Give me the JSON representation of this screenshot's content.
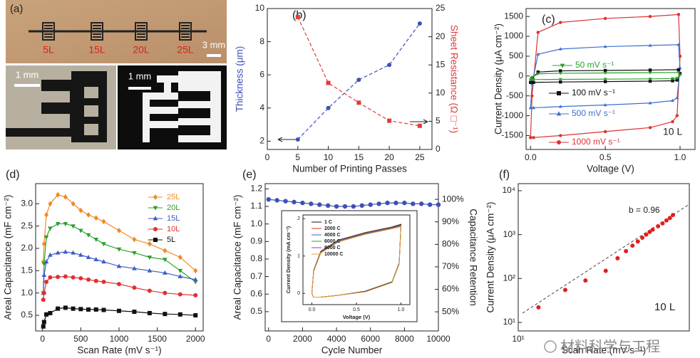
{
  "photos": {
    "label": "(a)",
    "samples": [
      "5L",
      "15L",
      "20L",
      "25L"
    ],
    "scale_top": "3 mm",
    "scale_left": "1 mm",
    "scale_right": "1 mm"
  },
  "watermark": "材料科学与工程",
  "chart_data": [
    {
      "label": "(b)",
      "type": "line",
      "x": [
        5,
        10,
        15,
        20,
        25
      ],
      "xlim": [
        0,
        27
      ],
      "xticks": [
        0,
        5,
        10,
        15,
        20,
        25
      ],
      "ylim": [
        1.5,
        10
      ],
      "yticks": [
        2,
        4,
        6,
        8,
        10
      ],
      "y2lim": [
        0,
        25
      ],
      "y2ticks": [
        0,
        5,
        10,
        15,
        20,
        25
      ],
      "xlabel": "Number of Printing Passes",
      "ylabel": "Thickness (μm)",
      "y2label": "Sheet Resistance (Ω □⁻¹)",
      "ylabel_color": "#3f4fb8",
      "y2label_color": "#e23b3b",
      "series": [
        {
          "color": "#3f4fb8",
          "marker": "circle",
          "dashed": true,
          "values": [
            2.1,
            4.0,
            5.7,
            6.6,
            9.1
          ]
        },
        {
          "color": "#e23b3b",
          "marker": "square",
          "dashed": true,
          "axis": "y2",
          "values": [
            23.5,
            11.8,
            8.3,
            5.1,
            4.2
          ]
        }
      ]
    },
    {
      "label": "(c)",
      "type": "line",
      "x": [
        0,
        0.01,
        0.05,
        0.2,
        0.5,
        0.8,
        0.99,
        1.0,
        0.98,
        0.95,
        0.8,
        0.5,
        0.2,
        0.02,
        0
      ],
      "xlim": [
        -0.03,
        1.1
      ],
      "xticks": [
        {
          "value": 0,
          "label": "0.0"
        },
        0.5,
        {
          "value": 1,
          "label": "1.0"
        }
      ],
      "ylim": [
        -1850,
        1700
      ],
      "yticks": [
        -1500,
        -1000,
        -500,
        0,
        500,
        1000,
        1500
      ],
      "xlabel": "Voltage (V)",
      "ylabel": "Current Density (μA cm⁻²)",
      "annotation": "10 L",
      "series": [
        {
          "name": "1000 mV s⁻¹",
          "color": "#e03030",
          "marker": "circle",
          "values": [
            -1550,
            -500,
            1100,
            1350,
            1450,
            1500,
            1550,
            500,
            -1000,
            -1150,
            -1300,
            -1400,
            -1500,
            -1550,
            -1550
          ]
        },
        {
          "name": "500 mV s⁻¹",
          "color": "#3d6fd1",
          "marker": "triangle",
          "values": [
            -800,
            -200,
            550,
            680,
            740,
            770,
            790,
            200,
            -550,
            -620,
            -680,
            -730,
            -770,
            -800,
            -800
          ]
        },
        {
          "name": "100 mV s⁻¹",
          "color": "#111111",
          "marker": "square",
          "values": [
            -160,
            -60,
            100,
            130,
            140,
            150,
            160,
            60,
            -100,
            -120,
            -130,
            -140,
            -150,
            -160,
            -160
          ]
        },
        {
          "name": "50 mV s⁻¹",
          "color": "#2ca02c",
          "marker": "triangle-down",
          "values": [
            -90,
            -30,
            55,
            70,
            78,
            84,
            90,
            30,
            -55,
            -65,
            -72,
            -78,
            -84,
            -90,
            -90
          ]
        }
      ]
    },
    {
      "label": "(d)",
      "type": "line",
      "x": [
        10,
        20,
        50,
        100,
        200,
        300,
        400,
        500,
        600,
        700,
        800,
        1000,
        1200,
        1400,
        1600,
        1800,
        2000
      ],
      "xlim": [
        -90,
        2100
      ],
      "xticks": [
        0,
        500,
        1000,
        1500,
        2000
      ],
      "ylim": [
        0.15,
        3.45
      ],
      "yticks": [
        0.5,
        {
          "value": 1,
          "label": "1.0"
        },
        1.5,
        {
          "value": 2,
          "label": "2.0"
        },
        2.5,
        {
          "value": 3,
          "label": "3.0"
        }
      ],
      "xlabel": "Scan Rate (mV s⁻¹)",
      "ylabel": "Areal Capacitance (mF cm⁻²)",
      "legend": "upper right",
      "series": [
        {
          "name": "25L",
          "color": "#f08a24",
          "marker": "diamond",
          "values": [
            1.7,
            2.1,
            2.75,
            3.0,
            3.2,
            3.15,
            3.0,
            2.85,
            2.75,
            2.68,
            2.6,
            2.4,
            2.2,
            2.1,
            1.95,
            1.8,
            1.5
          ]
        },
        {
          "name": "20L",
          "color": "#2ca02c",
          "marker": "triangle-down",
          "values": [
            1.0,
            1.65,
            2.25,
            2.45,
            2.55,
            2.55,
            2.5,
            2.4,
            2.3,
            2.2,
            2.1,
            1.98,
            1.9,
            1.8,
            1.75,
            1.5,
            1.25
          ]
        },
        {
          "name": "15L",
          "color": "#3d5cc7",
          "marker": "triangle",
          "values": [
            1.0,
            1.4,
            1.7,
            1.85,
            1.9,
            1.92,
            1.9,
            1.85,
            1.8,
            1.75,
            1.7,
            1.6,
            1.55,
            1.5,
            1.45,
            1.37,
            1.3
          ]
        },
        {
          "name": "10L",
          "color": "#e03030",
          "marker": "circle",
          "values": [
            0.85,
            1.0,
            1.25,
            1.35,
            1.36,
            1.37,
            1.35,
            1.33,
            1.3,
            1.27,
            1.25,
            1.2,
            1.12,
            1.05,
            1.0,
            0.97,
            0.95
          ]
        },
        {
          "name": "5L",
          "color": "#111111",
          "marker": "square",
          "values": [
            0.25,
            0.35,
            0.52,
            0.55,
            0.65,
            0.67,
            0.65,
            0.64,
            0.63,
            0.63,
            0.62,
            0.6,
            0.58,
            0.55,
            0.53,
            0.52,
            0.5
          ]
        }
      ]
    },
    {
      "label": "(e)",
      "type": "line",
      "x": [
        0,
        500,
        1000,
        1500,
        2000,
        2500,
        3000,
        3500,
        4000,
        4500,
        5000,
        5500,
        6000,
        6500,
        7000,
        7500,
        8000,
        8500,
        9000,
        9500,
        10000
      ],
      "xlim": [
        -200,
        10000
      ],
      "xticks": [
        0,
        2000,
        4000,
        6000,
        8000,
        10000
      ],
      "ylim": [
        0.39,
        1.23
      ],
      "yticks": [
        0.5,
        0.6,
        0.7,
        0.8,
        0.9,
        {
          "value": 1,
          "label": "1.0"
        },
        1.1,
        1.2
      ],
      "y2lim": [
        41.5,
        107
      ],
      "y2ticks": [
        {
          "value": 50,
          "label": "50%"
        },
        {
          "value": 60,
          "label": "60%"
        },
        {
          "value": 70,
          "label": "70%"
        },
        {
          "value": 80,
          "label": "80%"
        },
        {
          "value": 90,
          "label": "90%"
        },
        {
          "value": 100,
          "label": "100%"
        }
      ],
      "xlabel": "Cycle Number",
      "ylabel": "Areal Capacitance (mF cm⁻²)",
      "y2label": "Capacitance Retention",
      "series": [
        {
          "color": "#3f4fb8",
          "marker": "circle",
          "values": [
            1.14,
            1.135,
            1.13,
            1.125,
            1.12,
            1.115,
            1.11,
            1.105,
            1.1,
            1.1,
            1.1,
            1.105,
            1.11,
            1.115,
            1.12,
            1.12,
            1.12,
            1.115,
            1.115,
            1.11,
            1.11
          ]
        }
      ]
    },
    {
      "type": "line",
      "inset": true,
      "x": [
        0,
        0.02,
        0.1,
        0.3,
        0.6,
        0.9,
        1.0,
        0.98,
        0.9,
        0.6,
        0.3,
        0.1,
        0.02,
        0
      ],
      "xlim": [
        -0.1,
        1.1
      ],
      "xticks": [
        {
          "value": 0,
          "label": "0.0"
        },
        0.5,
        {
          "value": 1,
          "label": "1.0"
        }
      ],
      "ylim": [
        -0.3,
        2.1
      ],
      "yticks": [
        0,
        1,
        2
      ],
      "xlabel": "Voltage (V)",
      "ylabel": "Current Density (mA cm⁻²)",
      "legend": "upper left",
      "series": [
        {
          "name": "1 C",
          "color": "#111111",
          "values": [
            0.0,
            0.62,
            1.13,
            1.43,
            1.63,
            1.78,
            1.85,
            0.82,
            0.31,
            0.06,
            -0.05,
            -0.1,
            -0.1,
            0.0
          ]
        },
        {
          "name": "2000 C",
          "color": "#e03030",
          "values": [
            0.0,
            0.61,
            1.12,
            1.42,
            1.62,
            1.77,
            1.83,
            0.81,
            0.3,
            0.05,
            -0.05,
            -0.1,
            -0.1,
            0.0
          ]
        },
        {
          "name": "4000 C",
          "color": "#3d5cc7",
          "values": [
            0.0,
            0.6,
            1.11,
            1.41,
            1.61,
            1.76,
            1.82,
            0.8,
            0.3,
            0.05,
            -0.05,
            -0.1,
            -0.1,
            0.0
          ]
        },
        {
          "name": "6000 C",
          "color": "#2ca02c",
          "values": [
            0.0,
            0.6,
            1.1,
            1.4,
            1.6,
            1.75,
            1.81,
            0.8,
            0.3,
            0.05,
            -0.05,
            -0.1,
            -0.1,
            0.0
          ]
        },
        {
          "name": "8000 C",
          "color": "#8a3fb8",
          "values": [
            0.0,
            0.59,
            1.09,
            1.39,
            1.59,
            1.74,
            1.8,
            0.79,
            0.29,
            0.05,
            -0.05,
            -0.1,
            -0.1,
            0.0
          ]
        },
        {
          "name": "10000 C",
          "color": "#f0a020",
          "values": [
            0.0,
            0.58,
            1.08,
            1.38,
            1.58,
            1.73,
            1.79,
            0.78,
            0.29,
            0.04,
            -0.05,
            -0.1,
            -0.1,
            0.0
          ]
        }
      ]
    },
    {
      "label": "(f)",
      "type": "scatter",
      "xlog": true,
      "ylog": true,
      "x": [
        20,
        50,
        100,
        200,
        300,
        400,
        500,
        600,
        700,
        800,
        900,
        1000,
        1200,
        1400,
        1600,
        1800,
        2000
      ],
      "xlim": [
        10,
        3500
      ],
      "xticks": [
        {
          "value": 10,
          "label": "10¹"
        }
      ],
      "ylim": [
        6.4,
        14500
      ],
      "yticks": [
        {
          "value": 10,
          "label": "10¹"
        },
        {
          "value": 100,
          "label": "10²"
        },
        {
          "value": 1000,
          "label": "10³"
        },
        {
          "value": 10000,
          "label": "10⁴"
        }
      ],
      "xlabel": "Scan Rate (mV s⁻¹)",
      "ylabel": "Current Density (μA cm⁻²)",
      "annotations": [
        "b = 0.96",
        "10 L"
      ],
      "series": [
        {
          "color": "#e02020",
          "marker": "circle",
          "values": [
            22,
            55,
            90,
            150,
            290,
            420,
            560,
            700,
            850,
            1000,
            1150,
            1300,
            1550,
            1800,
            2100,
            2400,
            2800
          ]
        }
      ]
    }
  ]
}
